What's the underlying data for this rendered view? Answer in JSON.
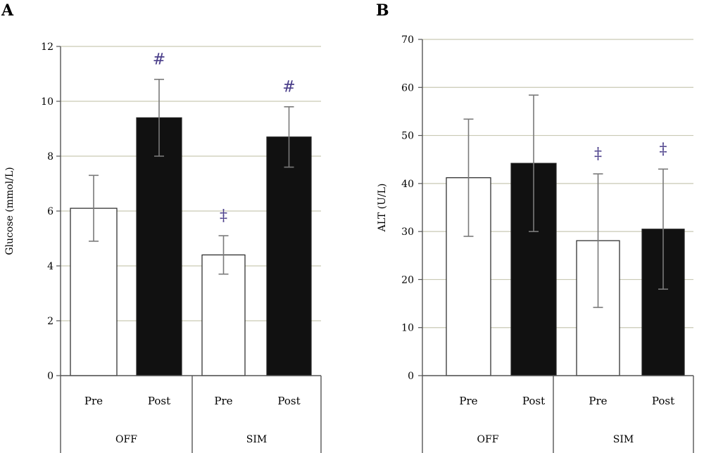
{
  "chart_data": [
    {
      "panel": "A",
      "type": "bar",
      "ylabel": "Glucose (mmol/L)",
      "ylim": [
        0,
        12
      ],
      "yticks": [
        0,
        2,
        4,
        6,
        8,
        10,
        12
      ],
      "grid": true,
      "groups": [
        "OFF",
        "SIM"
      ],
      "categories": [
        "Pre",
        "Post",
        "Pre",
        "Post"
      ],
      "values": [
        6.1,
        9.4,
        4.4,
        8.7
      ],
      "errors": [
        1.2,
        1.4,
        0.7,
        1.1
      ],
      "fills": [
        "#ffffff",
        "#111111",
        "#ffffff",
        "#111111"
      ],
      "annotations": [
        "",
        "#",
        "‡",
        "#"
      ]
    },
    {
      "panel": "B",
      "type": "bar",
      "ylabel": "ALT (U/L)",
      "ylim": [
        0,
        70
      ],
      "yticks": [
        0,
        10,
        20,
        30,
        40,
        50,
        60,
        70
      ],
      "grid": true,
      "groups": [
        "OFF",
        "SIM"
      ],
      "categories": [
        "Pre",
        "Post",
        "Pre",
        "Post"
      ],
      "values": [
        41.2,
        44.2,
        28.1,
        30.5
      ],
      "errors": [
        12.2,
        14.2,
        13.9,
        12.5
      ],
      "fills": [
        "#ffffff",
        "#111111",
        "#ffffff",
        "#111111"
      ],
      "annotations": [
        "",
        "",
        "‡",
        "‡"
      ]
    }
  ]
}
